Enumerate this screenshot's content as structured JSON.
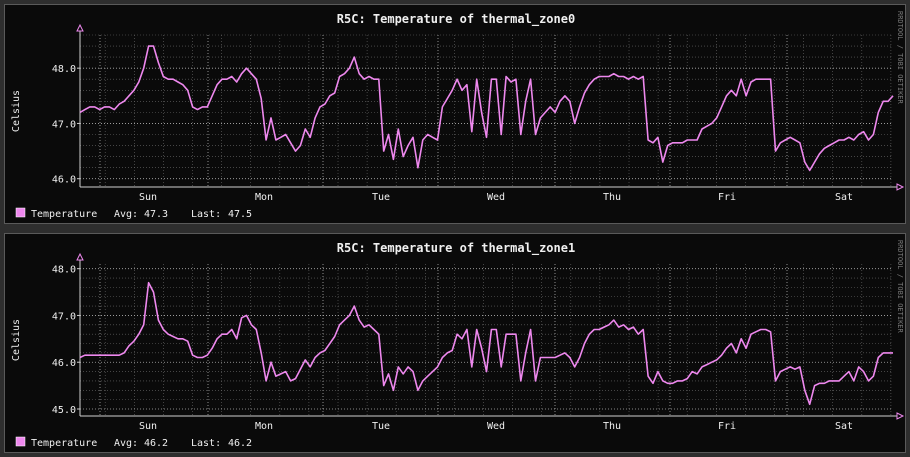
{
  "watermark": "RRDTOOL / TOBI OETIKER",
  "colors": {
    "background": "#0a0a0a",
    "frame": "#2e2e2e",
    "grid": "#6a6a6a",
    "text": "#f0f0f0",
    "axis": "#d0d0d0",
    "arrow": "#ee88ee",
    "line": "#ee88ee"
  },
  "chart_data": [
    {
      "type": "line",
      "title": "R5C: Temperature of thermal_zone0",
      "ylabel": "Celsius",
      "xlabel": "",
      "x_tick_labels": [
        "Sun",
        "Mon",
        "Tue",
        "Wed",
        "Thu",
        "Fri",
        "Sat"
      ],
      "y_ticks": [
        46.0,
        47.0,
        48.0
      ],
      "ylim": [
        45.85,
        48.6
      ],
      "grid": true,
      "legend": {
        "label": "Temperature",
        "avg_label": "Avg:",
        "avg_value": "47.3",
        "last_label": "Last:",
        "last_value": "47.5",
        "color": "#ee88ee"
      },
      "series": [
        {
          "name": "Temperature",
          "values": [
            47.2,
            47.25,
            47.3,
            47.3,
            47.25,
            47.3,
            47.3,
            47.25,
            47.35,
            47.4,
            47.5,
            47.6,
            47.75,
            48.0,
            48.4,
            48.4,
            48.1,
            47.85,
            47.8,
            47.8,
            47.75,
            47.7,
            47.6,
            47.3,
            47.25,
            47.3,
            47.3,
            47.5,
            47.7,
            47.8,
            47.8,
            47.85,
            47.75,
            47.9,
            48.0,
            47.9,
            47.8,
            47.45,
            46.7,
            47.1,
            46.7,
            46.75,
            46.8,
            46.65,
            46.5,
            46.6,
            46.9,
            46.75,
            47.1,
            47.3,
            47.35,
            47.5,
            47.55,
            47.85,
            47.9,
            48.0,
            48.2,
            47.9,
            47.8,
            47.85,
            47.8,
            47.8,
            46.5,
            46.8,
            46.35,
            46.9,
            46.4,
            46.6,
            46.75,
            46.2,
            46.7,
            46.8,
            46.75,
            46.7,
            47.3,
            47.45,
            47.6,
            47.8,
            47.6,
            47.7,
            46.85,
            47.8,
            47.2,
            46.75,
            47.8,
            47.8,
            46.8,
            47.85,
            47.75,
            47.8,
            46.8,
            47.4,
            47.8,
            46.8,
            47.1,
            47.2,
            47.3,
            47.2,
            47.4,
            47.5,
            47.4,
            47.0,
            47.3,
            47.55,
            47.7,
            47.8,
            47.85,
            47.85,
            47.85,
            47.9,
            47.85,
            47.85,
            47.8,
            47.85,
            47.8,
            47.85,
            46.7,
            46.65,
            46.75,
            46.3,
            46.6,
            46.65,
            46.65,
            46.65,
            46.7,
            46.7,
            46.7,
            46.9,
            46.95,
            47.0,
            47.1,
            47.3,
            47.5,
            47.6,
            47.5,
            47.8,
            47.5,
            47.75,
            47.8,
            47.8,
            47.8,
            47.8,
            46.5,
            46.65,
            46.7,
            46.75,
            46.7,
            46.65,
            46.3,
            46.15,
            46.3,
            46.45,
            46.55,
            46.6,
            46.65,
            46.7,
            46.7,
            46.75,
            46.7,
            46.8,
            46.85,
            46.7,
            46.8,
            47.2,
            47.4,
            47.4,
            47.5
          ]
        }
      ]
    },
    {
      "type": "line",
      "title": "R5C: Temperature of thermal_zone1",
      "ylabel": "Celsius",
      "xlabel": "",
      "x_tick_labels": [
        "Sun",
        "Mon",
        "Tue",
        "Wed",
        "Thu",
        "Fri",
        "Sat"
      ],
      "y_ticks": [
        45.0,
        46.0,
        47.0,
        48.0
      ],
      "ylim": [
        44.85,
        48.1
      ],
      "grid": true,
      "legend": {
        "label": "Temperature",
        "avg_label": "Avg:",
        "avg_value": "46.2",
        "last_label": "Last:",
        "last_value": "46.2",
        "color": "#ee88ee"
      },
      "series": [
        {
          "name": "Temperature",
          "values": [
            46.1,
            46.15,
            46.15,
            46.15,
            46.15,
            46.15,
            46.15,
            46.15,
            46.15,
            46.2,
            46.35,
            46.45,
            46.6,
            46.8,
            47.7,
            47.5,
            46.9,
            46.7,
            46.6,
            46.55,
            46.5,
            46.5,
            46.45,
            46.15,
            46.1,
            46.1,
            46.15,
            46.3,
            46.5,
            46.6,
            46.6,
            46.7,
            46.5,
            46.95,
            47.0,
            46.8,
            46.7,
            46.2,
            45.6,
            46.0,
            45.7,
            45.75,
            45.8,
            45.6,
            45.65,
            45.85,
            46.05,
            45.9,
            46.1,
            46.2,
            46.25,
            46.4,
            46.55,
            46.8,
            46.9,
            47.0,
            47.2,
            46.9,
            46.75,
            46.8,
            46.7,
            46.6,
            45.5,
            45.75,
            45.4,
            45.9,
            45.75,
            45.9,
            45.8,
            45.4,
            45.6,
            45.7,
            45.8,
            45.9,
            46.1,
            46.2,
            46.25,
            46.6,
            46.5,
            46.7,
            45.9,
            46.7,
            46.3,
            45.8,
            46.7,
            46.7,
            45.9,
            46.6,
            46.6,
            46.6,
            45.6,
            46.2,
            46.7,
            45.6,
            46.1,
            46.1,
            46.1,
            46.1,
            46.15,
            46.2,
            46.1,
            45.9,
            46.1,
            46.4,
            46.6,
            46.7,
            46.7,
            46.75,
            46.8,
            46.9,
            46.75,
            46.8,
            46.7,
            46.75,
            46.6,
            46.7,
            45.7,
            45.55,
            45.8,
            45.6,
            45.55,
            45.55,
            45.6,
            45.6,
            45.65,
            45.8,
            45.75,
            45.9,
            45.95,
            46.0,
            46.05,
            46.15,
            46.3,
            46.4,
            46.2,
            46.5,
            46.3,
            46.6,
            46.65,
            46.7,
            46.7,
            46.65,
            45.6,
            45.8,
            45.85,
            45.9,
            45.85,
            45.9,
            45.4,
            45.1,
            45.5,
            45.55,
            45.55,
            45.6,
            45.6,
            45.6,
            45.7,
            45.8,
            45.6,
            45.9,
            45.8,
            45.6,
            45.7,
            46.1,
            46.2,
            46.2,
            46.2
          ]
        }
      ]
    }
  ]
}
